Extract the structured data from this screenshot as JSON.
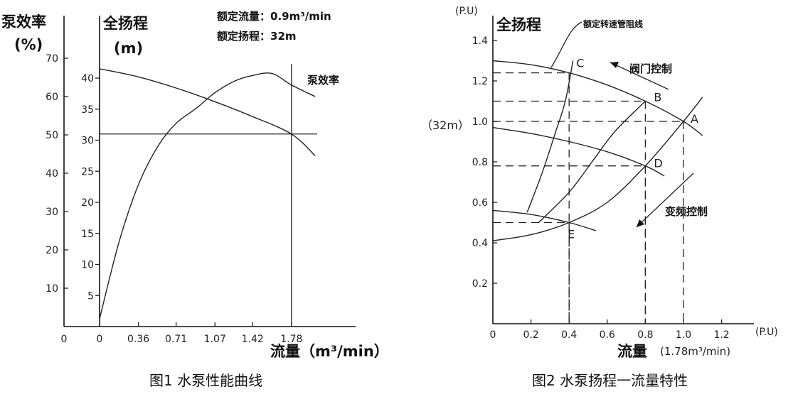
{
  "chart_data": [
    {
      "type": "line",
      "title": "",
      "caption": "图1 水泵性能曲线",
      "xlabel": "流量（m³/min）",
      "x_ticks": [
        "0",
        "0",
        "0.36",
        "0.71",
        "1.07",
        "1.42",
        "1.78"
      ],
      "left_axis": {
        "label_line1": "泵效率",
        "label_line2": "(%)",
        "ticks": [
          "70",
          "60",
          "50",
          "40",
          "30",
          "20",
          "10"
        ],
        "ylim": [
          0,
          75
        ]
      },
      "right_axis": {
        "label_line1": "全扬程",
        "label_line2": "(m)",
        "ticks": [
          "40",
          "35",
          "30",
          "25",
          "20",
          "15",
          "10",
          "5"
        ],
        "ylim": [
          0,
          45
        ]
      },
      "xlim": [
        0,
        2.2
      ],
      "ratings": [
        "额定流量：0.9m³/min",
        "额定扬程：32m"
      ],
      "annotations": [
        "泵效率"
      ],
      "series": [
        {
          "name": "",
          "kind": "head",
          "x": [
            0,
            0.36,
            0.71,
            1.07,
            1.42,
            1.78,
            2.0
          ],
          "y": [
            41.5,
            40.2,
            38.4,
            36.2,
            33.8,
            31,
            27.5
          ]
        },
        {
          "name": "泵效率",
          "kind": "efficiency",
          "x": [
            0,
            0.18,
            0.36,
            0.54,
            0.71,
            0.9,
            1.07,
            1.25,
            1.42,
            1.6,
            1.78,
            2.0
          ],
          "y": [
            2,
            22,
            37,
            47,
            53,
            57,
            61,
            64,
            65.5,
            66,
            63,
            60
          ]
        }
      ],
      "reference_lines": [
        {
          "orientation": "horizontal",
          "axis": "right",
          "y": 31
        },
        {
          "orientation": "vertical",
          "x": 1.78
        }
      ]
    },
    {
      "type": "line",
      "title": "",
      "caption": "图2 水泵扬程一流量特性",
      "ylabel": "全扬程",
      "y_unit": "(P.U)",
      "y_ref_label": "（32m）",
      "xlabel": "流量",
      "x_unit_label": "(1.78m³/min)",
      "x_unit": "(P.U)",
      "x_ticks": [
        "0",
        "0.2",
        "0.4",
        "0.6",
        "0.8",
        "1.0",
        "1.2"
      ],
      "y_ticks": [
        "1.4",
        "1.2",
        "1.0",
        "0.8",
        "0.6",
        "0.4",
        "0.2"
      ],
      "xlim": [
        0,
        1.4
      ],
      "ylim": [
        0,
        1.5
      ],
      "annotations": [
        "额定转速管阻线",
        "阀门控制",
        "变频控制"
      ],
      "points": [
        {
          "label": "A",
          "x": 1.0,
          "y": 1.0
        },
        {
          "label": "B",
          "x": 0.8,
          "y": 1.1
        },
        {
          "label": "C",
          "x": 0.4,
          "y": 1.24
        },
        {
          "label": "D",
          "x": 0.8,
          "y": 0.78
        },
        {
          "label": "E",
          "x": 0.4,
          "y": 0.5
        }
      ],
      "series": [
        {
          "name": "",
          "kind": "pump curve rated speed",
          "x": [
            0,
            0.2,
            0.4,
            0.6,
            0.8,
            1.0,
            1.1
          ],
          "y": [
            1.3,
            1.28,
            1.24,
            1.18,
            1.1,
            1.0,
            0.93
          ]
        },
        {
          "name": "",
          "kind": "pump curve reduced speed",
          "x": [
            0,
            0.2,
            0.4,
            0.6,
            0.8,
            0.9
          ],
          "y": [
            0.97,
            0.94,
            0.9,
            0.85,
            0.78,
            0.73
          ]
        },
        {
          "name": "",
          "kind": "pump curve low speed",
          "x": [
            0,
            0.2,
            0.4,
            0.54
          ],
          "y": [
            0.56,
            0.54,
            0.5,
            0.46
          ]
        },
        {
          "name": "",
          "kind": "system curve",
          "x": [
            0,
            0.2,
            0.4,
            0.6,
            0.8,
            1.0,
            1.1
          ],
          "y": [
            0.41,
            0.44,
            0.5,
            0.6,
            0.78,
            1.0,
            1.12
          ]
        },
        {
          "name": "",
          "kind": "valve system curve",
          "x": [
            0.24,
            0.4,
            0.52,
            0.64,
            0.8
          ],
          "y": [
            0.5,
            0.65,
            0.8,
            0.95,
            1.1
          ]
        },
        {
          "name": "",
          "kind": "valve system curve",
          "x": [
            0.18,
            0.26,
            0.33,
            0.38,
            0.42
          ],
          "y": [
            0.55,
            0.75,
            0.95,
            1.1,
            1.3
          ]
        }
      ]
    }
  ]
}
